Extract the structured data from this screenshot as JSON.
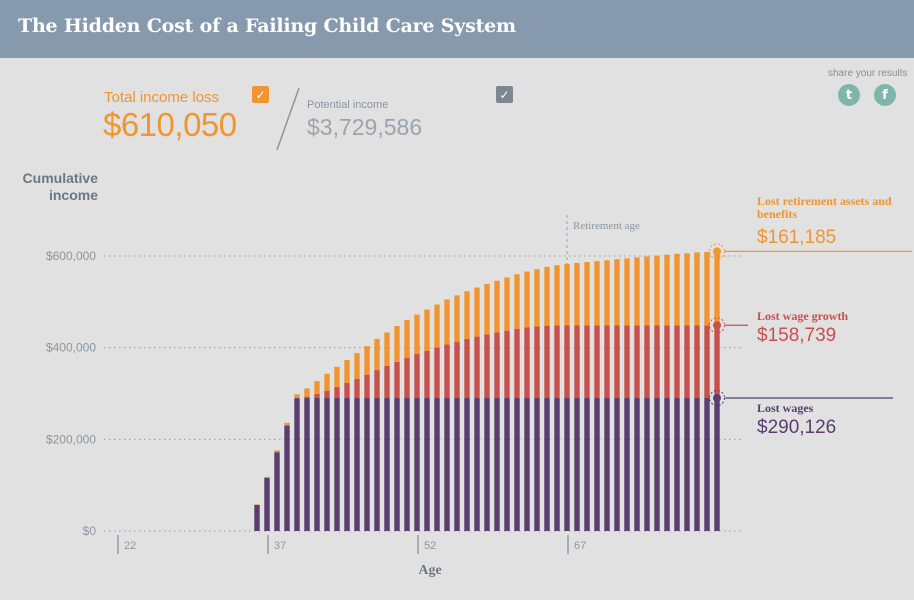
{
  "header": {
    "title": "The Hidden Cost of a Failing Child Care System"
  },
  "summary": {
    "total_label": "Total income loss",
    "total_value": "$610,050",
    "potential_label": "Potential income",
    "potential_value": "$3,729,586",
    "total_checked": true,
    "potential_checked": true,
    "check_glyph": "✓"
  },
  "share": {
    "label": "share your results",
    "twitter_icon": "twitter-icon",
    "twitter_glyph": "t",
    "facebook_icon": "facebook-icon",
    "facebook_glyph": "f"
  },
  "colors": {
    "wages": "#5a3e6f",
    "growth": "#c8504c",
    "retirement": "#f0952f",
    "axis": "#7e8a96",
    "grid": "#9a9a9a"
  },
  "chart_data": {
    "type": "bar",
    "stacked": true,
    "title": "Cumulative income",
    "ylabel_lines": [
      "Cumulative",
      "income"
    ],
    "xlabel": "Age",
    "ylim": [
      0,
      600000
    ],
    "y_ticks": [
      0,
      200000,
      400000,
      600000
    ],
    "y_tick_labels": [
      "$0",
      "$200,000",
      "$400,000",
      "$600,000"
    ],
    "x_ticks": [
      22,
      37,
      52,
      67
    ],
    "x_tick_labels": [
      "22",
      "37",
      "52",
      "67"
    ],
    "x_range": [
      22,
      82
    ],
    "retirement_age": 67,
    "retirement_label": "Retirement age",
    "ages": [
      36,
      37,
      38,
      39,
      40,
      41,
      42,
      43,
      44,
      45,
      46,
      47,
      48,
      49,
      50,
      51,
      52,
      53,
      54,
      55,
      56,
      57,
      58,
      59,
      60,
      61,
      62,
      63,
      64,
      65,
      66,
      67,
      68,
      69,
      70,
      71,
      72,
      73,
      74,
      75,
      76,
      77,
      78,
      79,
      80,
      81,
      82
    ],
    "series": [
      {
        "name": "Lost wages",
        "values": [
          57000,
          116000,
          172000,
          230000,
          290000,
          290126,
          290126,
          290126,
          290126,
          290126,
          290126,
          290126,
          290126,
          290126,
          290126,
          290126,
          290126,
          290126,
          290126,
          290126,
          290126,
          290126,
          290126,
          290126,
          290126,
          290126,
          290126,
          290126,
          290126,
          290126,
          290126,
          290126,
          290126,
          290126,
          290126,
          290126,
          290126,
          290126,
          290126,
          290126,
          290126,
          290126,
          290126,
          290126,
          290126,
          290126,
          290126
        ]
      },
      {
        "name": "Lost wage growth",
        "values": [
          0,
          0,
          0,
          0,
          0,
          3000,
          9000,
          16000,
          24000,
          33000,
          42000,
          51000,
          61000,
          70000,
          79000,
          88000,
          96000,
          103000,
          110000,
          117000,
          123000,
          129000,
          134000,
          139000,
          143000,
          147000,
          151000,
          154000,
          156000,
          158000,
          158739,
          158739,
          158739,
          158739,
          158739,
          158739,
          158739,
          158739,
          158739,
          158739,
          158739,
          158739,
          158739,
          158739,
          158739,
          158739,
          158739
        ]
      },
      {
        "name": "Lost retirement assets and benefits",
        "values": [
          1000,
          2000,
          4000,
          6000,
          8000,
          18000,
          28000,
          37000,
          44000,
          50000,
          56000,
          62000,
          68000,
          73000,
          78000,
          82000,
          86000,
          90000,
          94000,
          98000,
          101000,
          104000,
          107000,
          110000,
          113000,
          116000,
          119000,
          122000,
          125000,
          128000,
          131000,
          134000,
          136000,
          138000,
          140000,
          142000,
          144000,
          146000,
          148000,
          150000,
          152000,
          154000,
          156000,
          157000,
          159000,
          160000,
          161185
        ]
      }
    ],
    "legend": [
      {
        "name": "Lost retirement assets and benefits",
        "value": "$161,185"
      },
      {
        "name": "Lost wage growth",
        "value": "$158,739"
      },
      {
        "name": "Lost wages",
        "value": "$290,126"
      }
    ],
    "markers": [
      {
        "series": "retirement",
        "cumulative": 610050
      },
      {
        "series": "growth",
        "cumulative": 448865
      },
      {
        "series": "wages",
        "cumulative": 290126
      }
    ]
  }
}
